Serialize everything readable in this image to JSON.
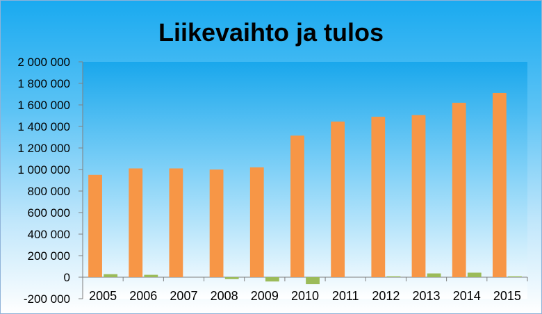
{
  "chart_data": {
    "type": "bar",
    "title": "Liikevaihto ja tulos",
    "xlabel": "",
    "ylabel": "",
    "categories": [
      "2005",
      "2006",
      "2007",
      "2008",
      "2009",
      "2010",
      "2011",
      "2012",
      "2013",
      "2014",
      "2015"
    ],
    "series": [
      {
        "values": [
          950000,
          1010000,
          1010000,
          1000000,
          1020000,
          1315000,
          1445000,
          1490000,
          1505000,
          1620000,
          1710000
        ],
        "color": "#f79646"
      },
      {
        "values": [
          28000,
          22000,
          0,
          -18000,
          -40000,
          -65000,
          0,
          8000,
          35000,
          42000,
          8000
        ],
        "color": "#9bbb59"
      }
    ],
    "ylim": [
      -200000,
      2000000
    ],
    "yticks": [
      -200000,
      0,
      200000,
      400000,
      600000,
      800000,
      1000000,
      1200000,
      1400000,
      1600000,
      1800000,
      2000000
    ],
    "ytick_labels": [
      "-200 000",
      "0",
      "200 000",
      "400 000",
      "600 000",
      "800 000",
      "1 000 000",
      "1 200 000",
      "1 400 000",
      "1 600 000",
      "1 800 000",
      "2 000 000"
    ],
    "grid": false,
    "legend": "none"
  }
}
